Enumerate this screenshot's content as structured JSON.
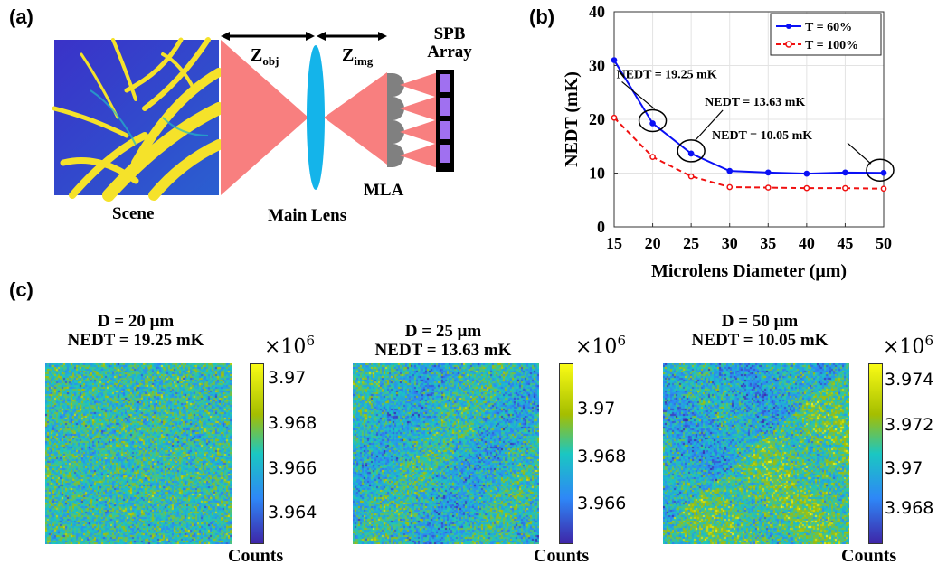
{
  "panel_a": {
    "label": "(a)",
    "scene_label": "Scene",
    "lens_label": "Main Lens",
    "mla_label": "MLA",
    "spb_label_line1": "SPB",
    "spb_label_line2": "Array",
    "zobj_main": "Z",
    "zobj_sub": "obj",
    "zimg_main": "Z",
    "zimg_sub": "img",
    "colors": {
      "cone": "#f87f7f",
      "lens": "#14b4ea",
      "mla": "#808080",
      "pixel": "#a070f0",
      "scene_bg": "#3a32c8",
      "scene_fg": "#f5e22a"
    }
  },
  "panel_b": {
    "label": "(b)"
  },
  "panel_c": {
    "label": "(c)",
    "maps": [
      {
        "title1": "D = 20 μm",
        "title2": "NEDT = 19.25 mK",
        "exponent": "×10",
        "exponent_power": "6",
        "ticks": [
          "3.97",
          "3.968",
          "3.966",
          "3.964"
        ],
        "counts_label": "Counts"
      },
      {
        "title1": "D = 25 μm",
        "title2": "NEDT = 13.63 mK",
        "exponent": "×10",
        "exponent_power": "6",
        "ticks": [
          "3.97",
          "3.968",
          "3.966"
        ],
        "counts_label": "Counts"
      },
      {
        "title1": "D = 50 μm",
        "title2": "NEDT = 10.05 mK",
        "exponent": "×10",
        "exponent_power": "6",
        "ticks": [
          "3.974",
          "3.972",
          "3.97",
          "3.968"
        ],
        "counts_label": "Counts"
      }
    ]
  },
  "chart_data": {
    "type": "line",
    "xlabel": "Microlens Diameter (μm)",
    "ylabel": "NEDT (mK)",
    "xlim": [
      15,
      50
    ],
    "ylim": [
      0,
      40
    ],
    "xticks": [
      "15",
      "20",
      "25",
      "30",
      "35",
      "40",
      "45",
      "50"
    ],
    "yticks": [
      "0",
      "10",
      "20",
      "30",
      "40"
    ],
    "grid": true,
    "legend_position": "top-right",
    "x": [
      15,
      20,
      25,
      30,
      35,
      40,
      45,
      50
    ],
    "series": [
      {
        "name": "T = 60%",
        "values": [
          31,
          19.25,
          13.63,
          10.4,
          10.1,
          9.9,
          10.1,
          10.05
        ],
        "color": "#0a10f5",
        "style": "solid"
      },
      {
        "name": "T = 100%",
        "values": [
          20.3,
          13.0,
          9.4,
          7.4,
          7.3,
          7.2,
          7.2,
          7.1
        ],
        "color": "#f01010",
        "style": "dashed"
      }
    ],
    "annotations": [
      {
        "text": "NEDT = 19.25 mK",
        "x": 20,
        "y": 19.25
      },
      {
        "text": "NEDT = 13.63 mK",
        "x": 25,
        "y": 13.63
      },
      {
        "text": "NEDT = 10.05 mK",
        "x": 50,
        "y": 10.05
      }
    ]
  }
}
